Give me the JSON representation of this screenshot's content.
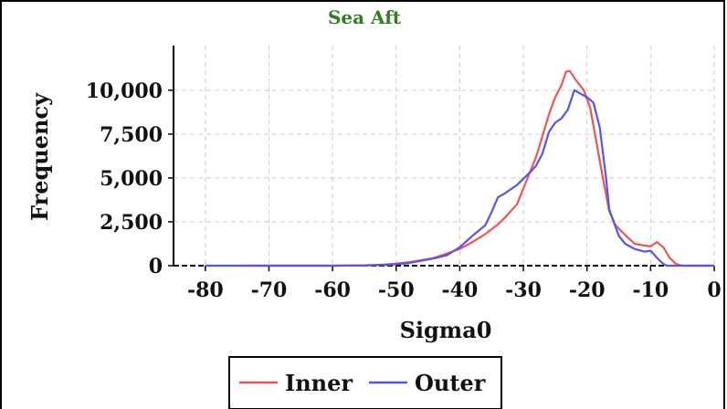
{
  "chart_data": {
    "type": "line",
    "title": "Sea Aft",
    "xlabel": "Sigma0",
    "ylabel": "Frequency",
    "xlim": [
      -85,
      0
    ],
    "ylim": [
      0,
      11500
    ],
    "x_ticks": [
      -80,
      -70,
      -60,
      -50,
      -40,
      -30,
      -20,
      -10,
      0
    ],
    "y_ticks": [
      0,
      2500,
      5000,
      7500,
      10000
    ],
    "x_tick_labels": [
      "-80",
      "-70",
      "-60",
      "-50",
      "-40",
      "-30",
      "-20",
      "-10",
      "0"
    ],
    "y_tick_labels": [
      "0",
      "2,500",
      "5,000",
      "7,500",
      "10,000"
    ],
    "grid": true,
    "legend_position": "bottom",
    "colors": {
      "title": "#2e7d1e",
      "Inner": "#ee5555",
      "Outer": "#5555ee",
      "grid": "#cccccc"
    },
    "series": [
      {
        "name": "Inner",
        "points": [
          [
            -75,
            0
          ],
          [
            -60,
            0
          ],
          [
            -55,
            20
          ],
          [
            -52,
            60
          ],
          [
            -50,
            120
          ],
          [
            -48,
            200
          ],
          [
            -46,
            320
          ],
          [
            -44,
            450
          ],
          [
            -42,
            700
          ],
          [
            -40,
            950
          ],
          [
            -38,
            1350
          ],
          [
            -36,
            1800
          ],
          [
            -34,
            2350
          ],
          [
            -33,
            2700
          ],
          [
            -31,
            3500
          ],
          [
            -29,
            5300
          ],
          [
            -28,
            6200
          ],
          [
            -27,
            7400
          ],
          [
            -26,
            8600
          ],
          [
            -25,
            9600
          ],
          [
            -24,
            10300
          ],
          [
            -23.3,
            11050
          ],
          [
            -22.7,
            11100
          ],
          [
            -21.8,
            10600
          ],
          [
            -20.5,
            10000
          ],
          [
            -19.5,
            9000
          ],
          [
            -18.5,
            7000
          ],
          [
            -17.5,
            5000
          ],
          [
            -16.5,
            3100
          ],
          [
            -15.5,
            2300
          ],
          [
            -14,
            1750
          ],
          [
            -12.5,
            1250
          ],
          [
            -11,
            1150
          ],
          [
            -10,
            1100
          ],
          [
            -9,
            1350
          ],
          [
            -8,
            1050
          ],
          [
            -7,
            450
          ],
          [
            -6,
            100
          ],
          [
            -5,
            0
          ],
          [
            0,
            0
          ]
        ]
      },
      {
        "name": "Outer",
        "points": [
          [
            -80,
            0
          ],
          [
            -70,
            0
          ],
          [
            -60,
            0
          ],
          [
            -55,
            10
          ],
          [
            -52,
            40
          ],
          [
            -50,
            80
          ],
          [
            -48,
            150
          ],
          [
            -46,
            280
          ],
          [
            -44,
            420
          ],
          [
            -42,
            600
          ],
          [
            -40,
            1050
          ],
          [
            -38,
            1700
          ],
          [
            -36,
            2300
          ],
          [
            -35,
            3050
          ],
          [
            -34,
            3900
          ],
          [
            -33,
            4100
          ],
          [
            -31,
            4600
          ],
          [
            -29,
            5300
          ],
          [
            -28,
            5700
          ],
          [
            -27,
            6400
          ],
          [
            -26,
            7600
          ],
          [
            -25,
            8150
          ],
          [
            -24,
            8400
          ],
          [
            -23,
            8900
          ],
          [
            -22,
            10000
          ],
          [
            -21,
            9800
          ],
          [
            -20,
            9600
          ],
          [
            -19,
            9300
          ],
          [
            -18,
            7900
          ],
          [
            -17,
            5000
          ],
          [
            -16.5,
            3200
          ],
          [
            -15,
            1700
          ],
          [
            -14,
            1250
          ],
          [
            -12.5,
            950
          ],
          [
            -11,
            800
          ],
          [
            -10,
            850
          ],
          [
            -9,
            450
          ],
          [
            -8,
            100
          ],
          [
            -7.5,
            0
          ],
          [
            0,
            0
          ]
        ]
      }
    ]
  }
}
